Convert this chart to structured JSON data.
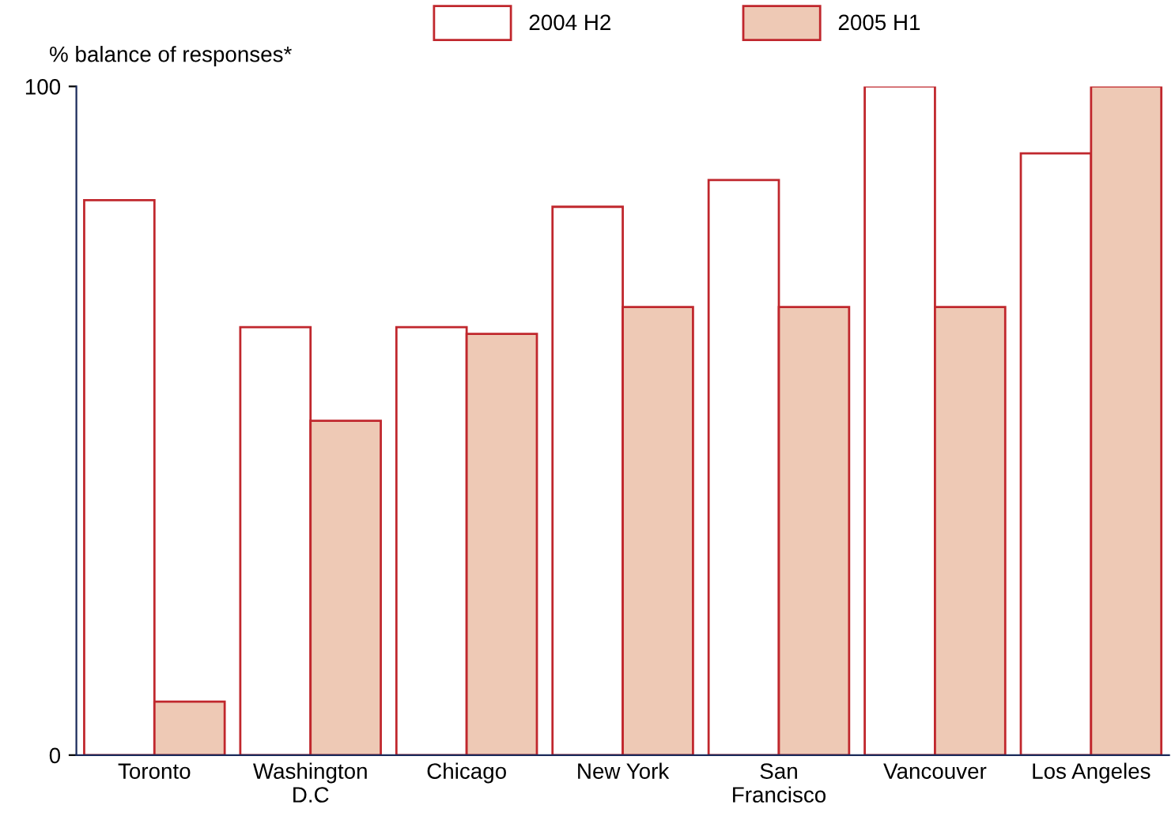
{
  "chart_data": {
    "type": "bar",
    "ylabel": "% balance of responses*",
    "categories": [
      "Toronto",
      "Washington\nD.C",
      "Chicago",
      "New York",
      "San\nFrancisco",
      "Vancouver",
      "Los Angeles"
    ],
    "series": [
      {
        "name": "2004 H2",
        "color": "#ffffff",
        "values": [
          83,
          64,
          64,
          82,
          86,
          100,
          90
        ]
      },
      {
        "name": "2005 H1",
        "color": "#eec9b5",
        "values": [
          8,
          50,
          63,
          67,
          67,
          67,
          100
        ]
      }
    ],
    "ylim": [
      0,
      100
    ],
    "yticks": [
      0,
      100
    ],
    "grid": false,
    "legend": "top"
  }
}
